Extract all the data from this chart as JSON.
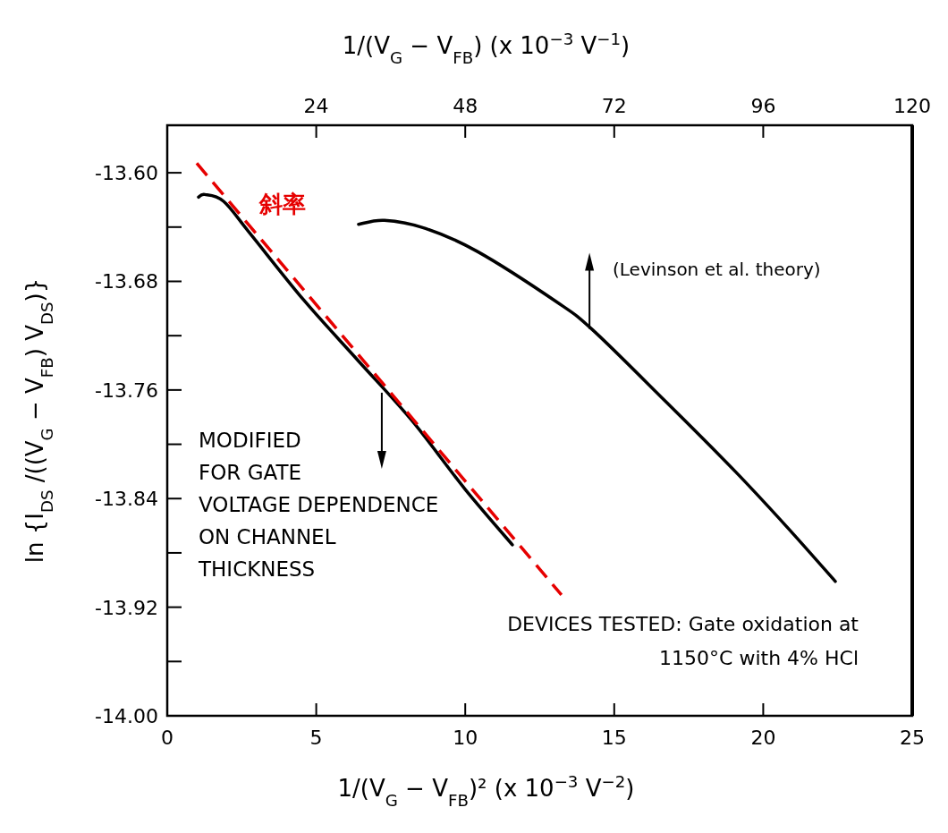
{
  "chart_data": {
    "type": "line",
    "xlabel": "1/(V$_{G}$ − V$_{FB}$)² (x 10$^{−3}$ V$^{−2}$)",
    "x2label": "1/(V$_{G}$ − V$_{FB}$) (x 10$^{−3}$ V$^{−1}$)",
    "ylabel": "ln {I$_{DS}$ /((V$_{G}$ − V$_{FB}$) V$_{DS}$)}",
    "xlim": [
      0,
      25
    ],
    "xticks": [
      0,
      5,
      10,
      15,
      20,
      25
    ],
    "x2lim": [
      0,
      120
    ],
    "x2ticks": [
      24,
      48,
      72,
      96,
      120
    ],
    "ylim": [
      -14.0,
      -13.565
    ],
    "yticks": [
      {
        "value": -14.0,
        "label": "-14.00"
      },
      {
        "value": -13.96,
        "label": null
      },
      {
        "value": -13.92,
        "label": "-13.92"
      },
      {
        "value": -13.88,
        "label": null
      },
      {
        "value": -13.84,
        "label": "-13.84"
      },
      {
        "value": -13.8,
        "label": null
      },
      {
        "value": -13.76,
        "label": "-13.76"
      },
      {
        "value": -13.72,
        "label": null
      },
      {
        "value": -13.68,
        "label": "-13.68"
      },
      {
        "value": -13.64,
        "label": null
      },
      {
        "value": -13.6,
        "label": "-13.60"
      }
    ],
    "series": [
      {
        "color": "#000000",
        "x": [
          1.05,
          1.26,
          1.89,
          2.79,
          4.59,
          6.39,
          8.19,
          9.99,
          11.58
        ],
        "values": [
          -13.618,
          -13.616,
          -13.621,
          -13.645,
          -13.694,
          -13.738,
          -13.782,
          -13.833,
          -13.874
        ]
      },
      {
        "color": "#000000",
        "x": [
          6.42,
          7.29,
          8.67,
          10.41,
          13.06,
          14.29,
          16.75,
          19.06,
          20.8,
          22.42
        ],
        "values": [
          -13.638,
          -13.635,
          -13.641,
          -13.658,
          -13.695,
          -13.716,
          -13.769,
          -13.82,
          -13.861,
          -13.901
        ]
      },
      {
        "name": "斜率",
        "color": "#e60000",
        "line_style": "dashed",
        "x": [
          0.99,
          13.23
        ],
        "values": [
          -13.593,
          -13.911
        ]
      }
    ],
    "annotations": [
      {
        "text": "MODIFIED\nFOR GATE\nVOLTAGE DEPENDENCE\nON CHANNEL\nTHICKNESS",
        "x": 7.2,
        "y": -13.762
      },
      {
        "text": "(Levinson et al. theory)",
        "x": 14.17,
        "y": -13.715
      },
      "DEVICES TESTED: Gate oxidation at\n1150°C with 4% HCl"
    ]
  }
}
